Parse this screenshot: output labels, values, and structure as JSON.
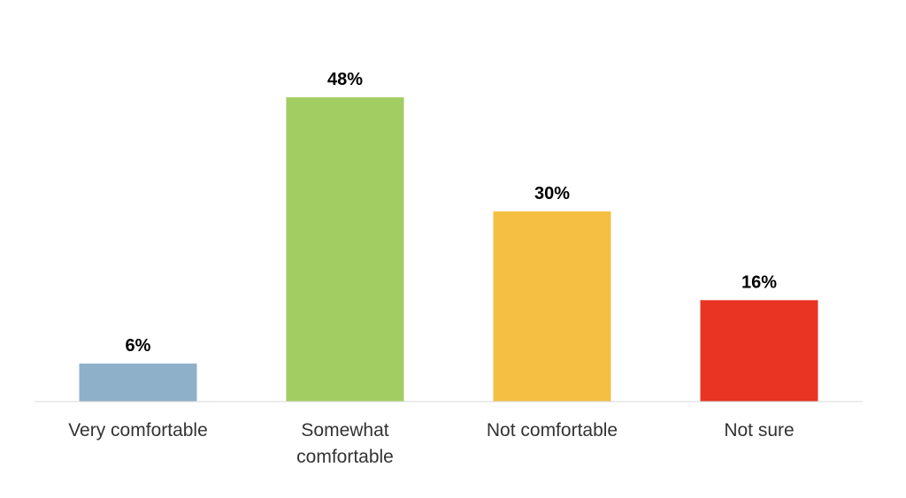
{
  "chart_data": {
    "type": "bar",
    "categories": [
      "Very comfortable",
      "Somewhat comfortable",
      "Not comfortable",
      "Not sure"
    ],
    "values": [
      6,
      48,
      30,
      16
    ],
    "value_labels": [
      "6%",
      "48%",
      "30%",
      "16%"
    ],
    "colors": [
      "#8fb0c9",
      "#a2cd62",
      "#f4bf42",
      "#e93323"
    ]
  }
}
